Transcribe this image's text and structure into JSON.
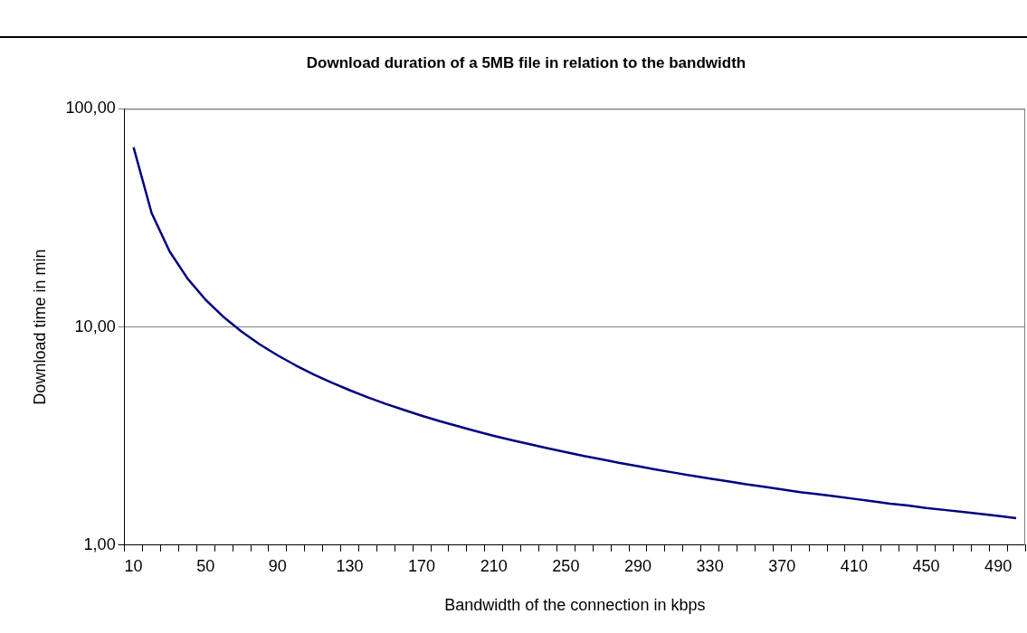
{
  "chart_data": {
    "type": "line",
    "title": "Download duration of a 5MB file in relation to the bandwidth",
    "xlabel": "Bandwidth of the connection in kbps",
    "ylabel": "Download time in min",
    "categories": [
      "10",
      null,
      null,
      null,
      "50",
      null,
      null,
      null,
      "90",
      null,
      null,
      null,
      "130",
      null,
      null,
      null,
      "170",
      null,
      null,
      null,
      "210",
      null,
      null,
      null,
      "250",
      null,
      null,
      null,
      "290",
      null,
      null,
      null,
      "330",
      null,
      null,
      null,
      "370",
      null,
      null,
      null,
      "410",
      null,
      null,
      null,
      "450",
      null,
      null,
      null,
      "490",
      null
    ],
    "series": [
      {
        "color": "#000080",
        "values": [
          66.67,
          33.33,
          22.22,
          16.67,
          13.33,
          11.11,
          9.52,
          8.33,
          7.41,
          6.67,
          6.06,
          5.56,
          5.13,
          4.76,
          4.44,
          4.17,
          3.92,
          3.7,
          3.51,
          3.33,
          3.17,
          3.03,
          2.9,
          2.78,
          2.67,
          2.56,
          2.47,
          2.38,
          2.3,
          2.22,
          2.15,
          2.08,
          2.02,
          1.96,
          1.9,
          1.85,
          1.8,
          1.75,
          1.71,
          1.67,
          1.63,
          1.59,
          1.55,
          1.52,
          1.48,
          1.45,
          1.42,
          1.39,
          1.36,
          1.33
        ]
      }
    ],
    "log": "y",
    "ylim": [
      1,
      100
    ],
    "yticks": [
      {
        "value": 1,
        "label": "1,00"
      },
      {
        "value": 10,
        "label": "10,00"
      },
      {
        "value": 100,
        "label": "100,00"
      }
    ],
    "grid": "y",
    "legend": false,
    "marker": "none",
    "line_style": "solid"
  }
}
